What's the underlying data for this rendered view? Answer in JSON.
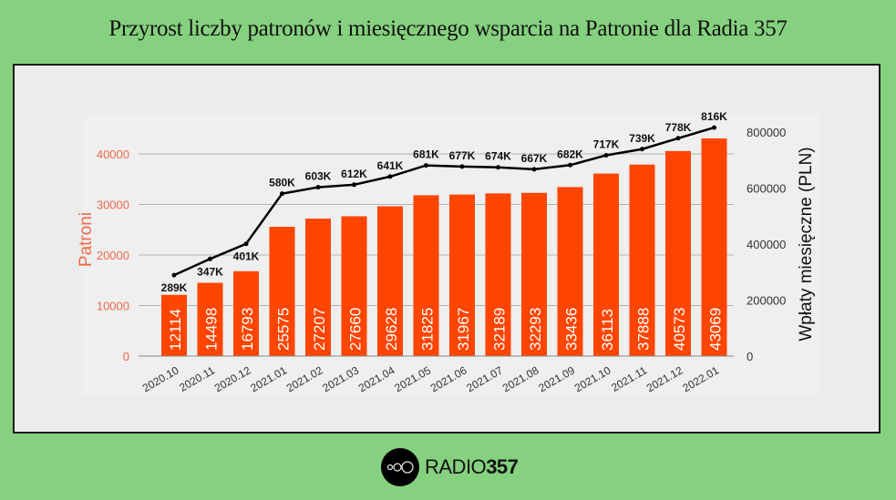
{
  "title": "Przyrost liczby patronów i miesięcznego wsparcia na Patronie dla Radia 357",
  "logo": {
    "text": "RADIO",
    "number": "357"
  },
  "colors": {
    "bar": "#ff4500",
    "line": "#000000",
    "left_axis": "#f0694a",
    "background": "#86d17f"
  },
  "chart_data": {
    "type": "bar+line",
    "categories": [
      "2020.10",
      "2020.11",
      "2020.12",
      "2021.01",
      "2021.02",
      "2021.03",
      "2021.04",
      "2021.05",
      "2021.06",
      "2021.07",
      "2021.08",
      "2021.09",
      "2021.10",
      "2021.11",
      "2021.12",
      "2022.01"
    ],
    "series": [
      {
        "name": "Patroni",
        "type": "bar",
        "axis": "left",
        "values": [
          12114,
          14498,
          16793,
          25575,
          27207,
          27660,
          29628,
          31825,
          31967,
          32189,
          32293,
          33436,
          36113,
          37888,
          40573,
          43069
        ]
      },
      {
        "name": "Wpłaty miesięczne (PLN)",
        "type": "line",
        "axis": "right",
        "values": [
          289000,
          347000,
          401000,
          580000,
          603000,
          612000,
          641000,
          681000,
          677000,
          674000,
          667000,
          682000,
          717000,
          739000,
          778000,
          816000
        ],
        "labels": [
          "289K",
          "347K",
          "401K",
          "580K",
          "603K",
          "612K",
          "641K",
          "681K",
          "677K",
          "674K",
          "667K",
          "682K",
          "717K",
          "739K",
          "778K",
          "816K"
        ]
      }
    ],
    "ylabel": "Patroni",
    "y2label": "Wpłaty miesięczne (PLN)",
    "yticks": [
      "0",
      "10000",
      "20000",
      "30000",
      "40000"
    ],
    "y2ticks": [
      "0",
      "200000",
      "400000",
      "600000",
      "800000"
    ],
    "ylim": [
      0,
      40000
    ],
    "y2lim": [
      0,
      800000
    ],
    "grid": true
  }
}
